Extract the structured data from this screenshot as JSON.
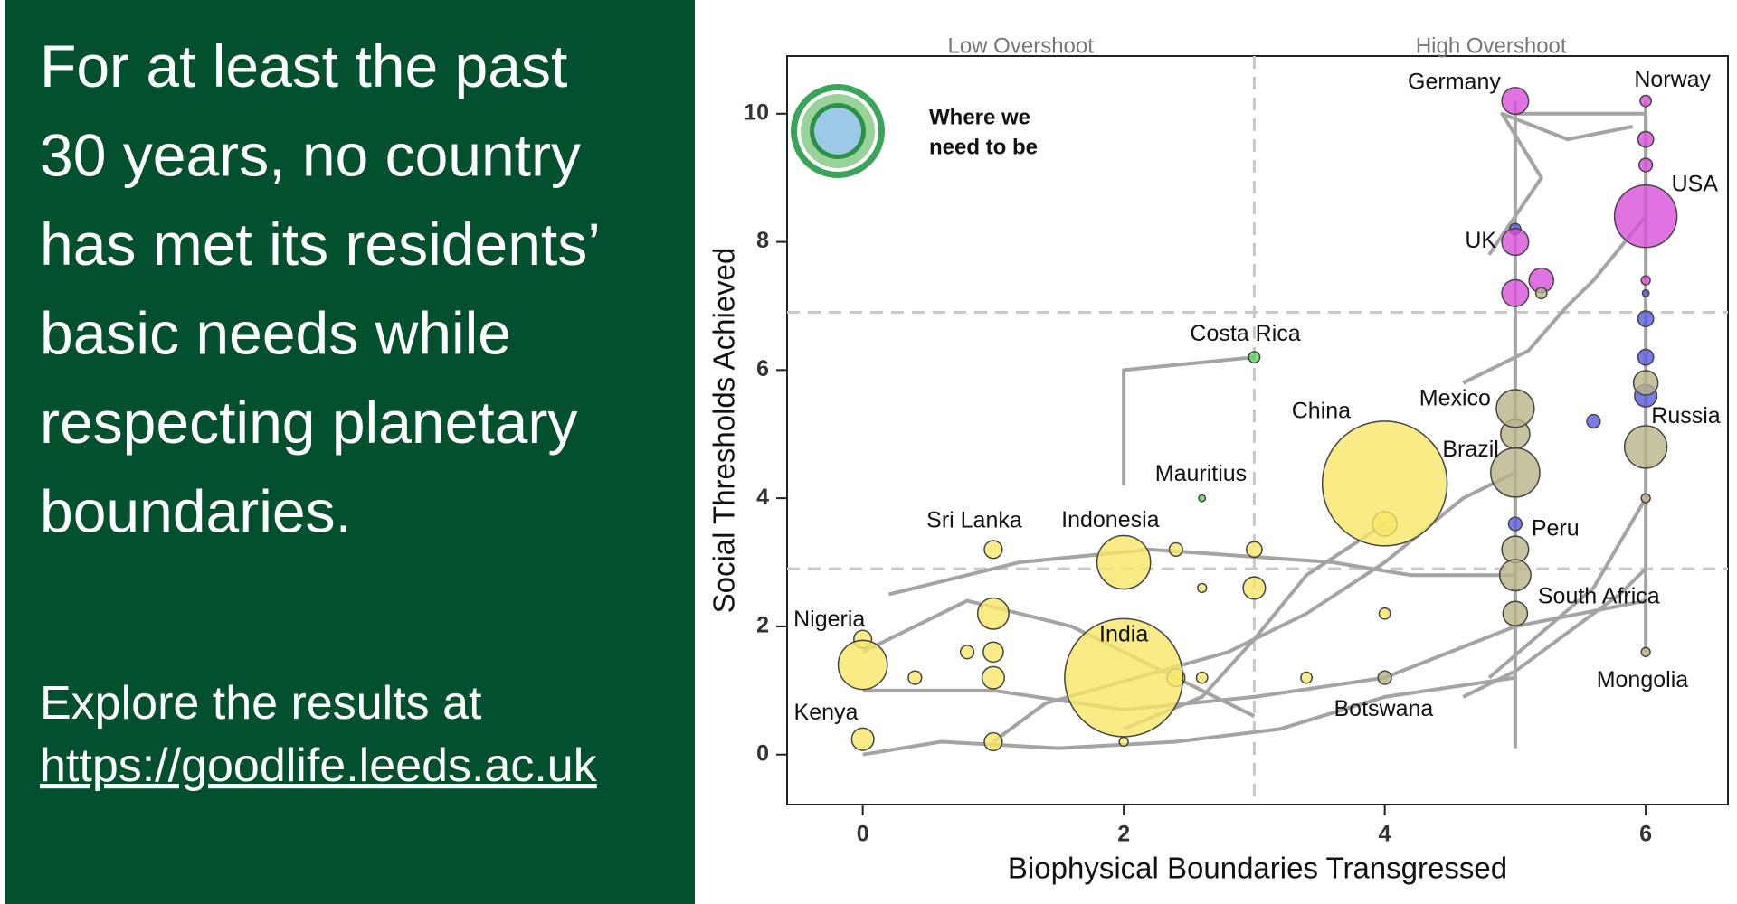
{
  "panel": {
    "heading_lines": [
      "For at least the past",
      "30 years, no country",
      "has met its residents’",
      "basic needs while",
      "respecting planetary",
      "boundaries."
    ],
    "explore": "Explore the results at",
    "link": "https://goodlife.leeds.ac.uk"
  },
  "chart_data": {
    "type": "bubble",
    "xlabel": "Biophysical Boundaries Transgressed",
    "ylabel": "Social Thresholds Achieved",
    "region_labels": [
      "Low Overshoot",
      "High Overshoot"
    ],
    "inset_label_lines": [
      "Where we",
      "need to be"
    ],
    "xlim": [
      -0.58,
      6.63
    ],
    "ylim": [
      -0.78,
      10.9
    ],
    "xticks": [
      0,
      2,
      4,
      6
    ],
    "yticks": [
      0,
      2,
      4,
      6,
      8,
      10
    ],
    "dividers": {
      "x": 3,
      "y": [
        2.9,
        6.9
      ]
    },
    "points": [
      {
        "label": "Germany",
        "x": 5,
        "y": 10.2,
        "size": 12,
        "color": "#d94fd9"
      },
      {
        "label": "Norway",
        "x": 6,
        "y": 10.2,
        "size": 5,
        "color": "#d94fd9"
      },
      {
        "label": "USA",
        "x": 6,
        "y": 8.4,
        "size": 28,
        "color": "#d94fd9"
      },
      {
        "label": "UK",
        "x": 5,
        "y": 8.0,
        "size": 12,
        "color": "#d94fd9"
      },
      {
        "label": "Costa Rica",
        "x": 3,
        "y": 6.2,
        "size": 5,
        "color": "#5fd35f"
      },
      {
        "label": "Mexico",
        "x": 5,
        "y": 5.4,
        "size": 17,
        "color": "#b9b48a"
      },
      {
        "label": "Brazil",
        "x": 5,
        "y": 4.4,
        "size": 22,
        "color": "#b9b48a"
      },
      {
        "label": "China",
        "x": 4,
        "y": 4.23,
        "size": 56,
        "color": "#f7e768"
      },
      {
        "label": "Russia",
        "x": 6,
        "y": 4.8,
        "size": 19,
        "color": "#b9b48a"
      },
      {
        "label": "Mauritius",
        "x": 2.6,
        "y": 4.0,
        "size": 3,
        "color": "#5fd35f"
      },
      {
        "label": "Sri Lanka",
        "x": 1,
        "y": 3.2,
        "size": 8,
        "color": "#f7e768"
      },
      {
        "label": "Indonesia",
        "x": 2,
        "y": 3.0,
        "size": 24,
        "color": "#f7e768"
      },
      {
        "label": "Peru",
        "x": 5,
        "y": 3.6,
        "size": 6,
        "color": "#5a5ae0"
      },
      {
        "label": "South Africa",
        "x": 5,
        "y": 2.8,
        "size": 14,
        "color": "#b9b48a"
      },
      {
        "label": "Nigeria",
        "x": 0,
        "y": 1.4,
        "size": 22,
        "color": "#f7e768"
      },
      {
        "label": "India",
        "x": 2,
        "y": 1.2,
        "size": 53,
        "color": "#f7e768"
      },
      {
        "label": "Kenya",
        "x": 0,
        "y": 0.24,
        "size": 10,
        "color": "#f7e768"
      },
      {
        "label": "Botswana",
        "x": 4,
        "y": 1.2,
        "size": 6,
        "color": "#b9b48a"
      },
      {
        "label": "Mongolia",
        "x": 6,
        "y": 1.6,
        "size": 4,
        "color": "#b9b48a"
      }
    ],
    "other_points": [
      {
        "x": 1,
        "y": 2.2,
        "size": 14,
        "color": "#f7e768"
      },
      {
        "x": 1,
        "y": 1.6,
        "size": 9,
        "color": "#f7e768"
      },
      {
        "x": 1,
        "y": 1.2,
        "size": 10,
        "color": "#f7e768"
      },
      {
        "x": 0.8,
        "y": 1.6,
        "size": 6,
        "color": "#f7e768"
      },
      {
        "x": 2.4,
        "y": 1.2,
        "size": 8,
        "color": "#f7e768"
      },
      {
        "x": 3,
        "y": 2.6,
        "size": 10,
        "color": "#f7e768"
      },
      {
        "x": 3,
        "y": 3.2,
        "size": 7,
        "color": "#f7e768"
      },
      {
        "x": 2.4,
        "y": 3.2,
        "size": 6,
        "color": "#f7e768"
      },
      {
        "x": 4,
        "y": 3.6,
        "size": 11,
        "color": "#f7e768"
      },
      {
        "x": 2.6,
        "y": 2.6,
        "size": 4,
        "color": "#f7e768"
      },
      {
        "x": 3.4,
        "y": 1.2,
        "size": 5,
        "color": "#f7e768"
      },
      {
        "x": 0,
        "y": 1.8,
        "size": 8,
        "color": "#f7e768"
      },
      {
        "x": 0.4,
        "y": 1.2,
        "size": 6,
        "color": "#f7e768"
      },
      {
        "x": 1,
        "y": 0.2,
        "size": 8,
        "color": "#f7e768"
      },
      {
        "x": 4,
        "y": 2.2,
        "size": 5,
        "color": "#f7e768"
      },
      {
        "x": 2,
        "y": 0.2,
        "size": 4,
        "color": "#f7e768"
      },
      {
        "x": 2.6,
        "y": 1.2,
        "size": 5,
        "color": "#f7e768"
      },
      {
        "x": 5,
        "y": 7.2,
        "size": 12,
        "color": "#d94fd9"
      },
      {
        "x": 5.2,
        "y": 7.4,
        "size": 11,
        "color": "#d94fd9"
      },
      {
        "x": 6,
        "y": 9.6,
        "size": 7,
        "color": "#d94fd9"
      },
      {
        "x": 6,
        "y": 9.2,
        "size": 6,
        "color": "#d94fd9"
      },
      {
        "x": 6,
        "y": 7.4,
        "size": 4,
        "color": "#d94fd9"
      },
      {
        "x": 6,
        "y": 6.8,
        "size": 7,
        "color": "#5a5ae0"
      },
      {
        "x": 6,
        "y": 6.2,
        "size": 7,
        "color": "#5a5ae0"
      },
      {
        "x": 6,
        "y": 5.6,
        "size": 10,
        "color": "#5a5ae0"
      },
      {
        "x": 5.6,
        "y": 5.2,
        "size": 6,
        "color": "#5a5ae0"
      },
      {
        "x": 6,
        "y": 7.2,
        "size": 3,
        "color": "#5a5ae0"
      },
      {
        "x": 5,
        "y": 8.2,
        "size": 5,
        "color": "#5a5ae0"
      },
      {
        "x": 5,
        "y": 5.0,
        "size": 13,
        "color": "#b9b48a"
      },
      {
        "x": 5,
        "y": 2.2,
        "size": 11,
        "color": "#b9b48a"
      },
      {
        "x": 6,
        "y": 5.8,
        "size": 11,
        "color": "#b9b48a"
      },
      {
        "x": 6,
        "y": 4.0,
        "size": 4,
        "color": "#b9b48a"
      },
      {
        "x": 5.2,
        "y": 7.2,
        "size": 5,
        "color": "#b9b48a"
      },
      {
        "x": 5,
        "y": 3.2,
        "size": 12,
        "color": "#b9b48a"
      }
    ],
    "trails": [
      {
        "x": [
          5,
          5
        ],
        "y": [
          10.2,
          0.1
        ]
      },
      {
        "x": [
          6,
          6
        ],
        "y": [
          10.2,
          1.6
        ]
      },
      {
        "x": [
          5,
          6,
          6
        ],
        "y": [
          10,
          10,
          9.2
        ]
      },
      {
        "x": [
          3,
          2,
          2
        ],
        "y": [
          6.2,
          6.0,
          4.2
        ]
      },
      {
        "x": [
          0,
          0.6,
          1.5,
          2.4,
          3.2,
          4,
          5
        ],
        "y": [
          0.0,
          0.2,
          0.1,
          0.2,
          0.4,
          0.9,
          1.2
        ]
      },
      {
        "x": [
          0,
          1,
          2,
          3,
          4,
          5,
          6
        ],
        "y": [
          1.0,
          1.0,
          0.7,
          0.9,
          1.2,
          2.0,
          2.4
        ]
      },
      {
        "x": [
          0.2,
          1.2,
          2.2,
          3.6,
          4.2,
          5
        ],
        "y": [
          2.5,
          3.0,
          3.2,
          3.0,
          2.8,
          2.8
        ]
      },
      {
        "x": [
          1,
          1.4,
          2.8,
          3.4,
          4,
          4.6,
          5
        ],
        "y": [
          0.2,
          0.8,
          1.6,
          2.2,
          3.0,
          4.0,
          4.4
        ]
      },
      {
        "x": [
          4.8,
          5.6,
          6
        ],
        "y": [
          1.2,
          2.6,
          4.0
        ]
      },
      {
        "x": [
          4.6,
          5.1,
          5.4,
          5.6,
          6
        ],
        "y": [
          5.8,
          6.3,
          7.0,
          7.4,
          8.4
        ]
      },
      {
        "x": [
          4.8,
          5.2,
          4.9,
          5.4,
          5.9
        ],
        "y": [
          7.8,
          9.0,
          10.0,
          9.6,
          9.8
        ]
      },
      {
        "x": [
          0,
          0.8,
          1.6,
          2.4,
          3.0
        ],
        "y": [
          1.6,
          2.4,
          2.0,
          1.2,
          0.6
        ]
      },
      {
        "x": [
          2,
          2.6,
          3.0,
          3.4,
          4.0
        ],
        "y": [
          0.4,
          0.9,
          1.8,
          2.8,
          3.6
        ]
      },
      {
        "x": [
          4.6,
          5.0,
          5.4,
          5.8,
          6
        ],
        "y": [
          0.9,
          1.3,
          1.9,
          2.5,
          2.9
        ]
      }
    ]
  }
}
